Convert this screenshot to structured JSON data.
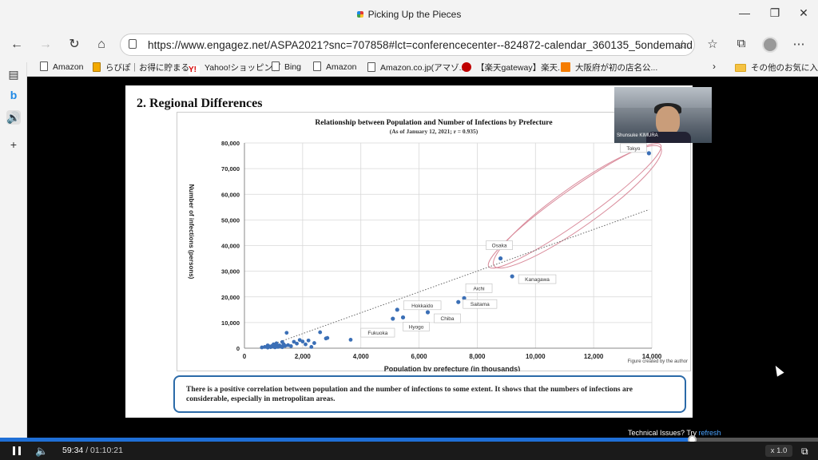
{
  "browser": {
    "title": "Picking Up the Pieces",
    "url": "https://www.engagez.net/ASPA2021?snc=707858#lct=conferencecenter--824872-calendar_360135_5ondemand",
    "bookmarks": [
      {
        "label": "Amazon",
        "icon": "page-icon"
      },
      {
        "label": "らびぽ｜お得に貯まる...",
        "icon": "rabipo-icon"
      },
      {
        "label": "Yahoo!ショッピング",
        "icon": "yahoo-icon"
      },
      {
        "label": "Bing",
        "icon": "page-icon"
      },
      {
        "label": "Amazon",
        "icon": "page-icon"
      },
      {
        "label": "Amazon.co.jp(アマゾ...",
        "icon": "page-icon"
      },
      {
        "label": "【楽天gateway】楽天...",
        "icon": "rakuten-icon"
      },
      {
        "label": "大阪府が初の店名公...",
        "icon": "news47-icon"
      }
    ],
    "other_favorites": "その他のお気に入り"
  },
  "slide": {
    "heading": "2. Regional Differences",
    "caption": "There is a positive correlation between population and the number of infections to some extent. It shows that the numbers of infections are considerable, especially in metropolitan areas.",
    "credit": "Figure created by the author"
  },
  "speaker": {
    "name": "Shunsuke KIMURA"
  },
  "player": {
    "current_time": "59:34",
    "separator": " / ",
    "duration": "01:10:21",
    "progress": 0.847,
    "speed": "x 1.0",
    "tech_issues": "Technical Issues? Try ",
    "refresh": "refresh"
  },
  "chart_data": {
    "type": "scatter",
    "title": "Relationship between Population and Number of Infections by Prefecture",
    "subtitle": "(As of January 12, 2021; r = 0.935)",
    "xlabel": "Population by prefecture (in thousands)",
    "ylabel": "Number of infections (persons)",
    "xlim": [
      0,
      14000
    ],
    "ylim": [
      0,
      80000
    ],
    "xticks": [
      "0",
      "2,000",
      "4,000",
      "6,000",
      "8,000",
      "10,000",
      "12,000",
      "14,000"
    ],
    "yticks": [
      "0",
      "10,000",
      "20,000",
      "30,000",
      "40,000",
      "50,000",
      "60,000",
      "70,000",
      "80,000"
    ],
    "grid": true,
    "labeled_points": [
      {
        "name": "Tokyo",
        "x": 13900,
        "y": 76000
      },
      {
        "name": "Osaka",
        "x": 8800,
        "y": 35000
      },
      {
        "name": "Kanagawa",
        "x": 9200,
        "y": 28000
      },
      {
        "name": "Aichi",
        "x": 7550,
        "y": 19500
      },
      {
        "name": "Saitama",
        "x": 7350,
        "y": 18000
      },
      {
        "name": "Hokkaido",
        "x": 5250,
        "y": 15000
      },
      {
        "name": "Chiba",
        "x": 6300,
        "y": 14000
      },
      {
        "name": "Hyogo",
        "x": 5450,
        "y": 12000
      },
      {
        "name": "Fukuoka",
        "x": 5100,
        "y": 11500
      }
    ],
    "other_points": [
      [
        600,
        300
      ],
      [
        700,
        500
      ],
      [
        800,
        250
      ],
      [
        850,
        700
      ],
      [
        900,
        400
      ],
      [
        950,
        900
      ],
      [
        1000,
        600
      ],
      [
        1050,
        350
      ],
      [
        1100,
        800
      ],
      [
        1150,
        500
      ],
      [
        1200,
        1100
      ],
      [
        1250,
        700
      ],
      [
        1300,
        400
      ],
      [
        1350,
        1500
      ],
      [
        1400,
        900
      ],
      [
        1450,
        6000
      ],
      [
        1500,
        1200
      ],
      [
        1600,
        800
      ],
      [
        1700,
        2500
      ],
      [
        1800,
        1800
      ],
      [
        1900,
        3200
      ],
      [
        2000,
        2600
      ],
      [
        2100,
        1500
      ],
      [
        2200,
        3000
      ],
      [
        2300,
        500
      ],
      [
        2400,
        2000
      ],
      [
        2600,
        6200
      ],
      [
        2800,
        3800
      ],
      [
        2850,
        4000
      ],
      [
        3650,
        3300
      ],
      [
        1000,
        1500
      ],
      [
        1300,
        2400
      ],
      [
        1100,
        1900
      ],
      [
        800,
        1100
      ]
    ],
    "trendline": {
      "from": [
        600,
        0
      ],
      "to": [
        13900,
        54000
      ]
    },
    "highlight_ellipses": 2
  }
}
